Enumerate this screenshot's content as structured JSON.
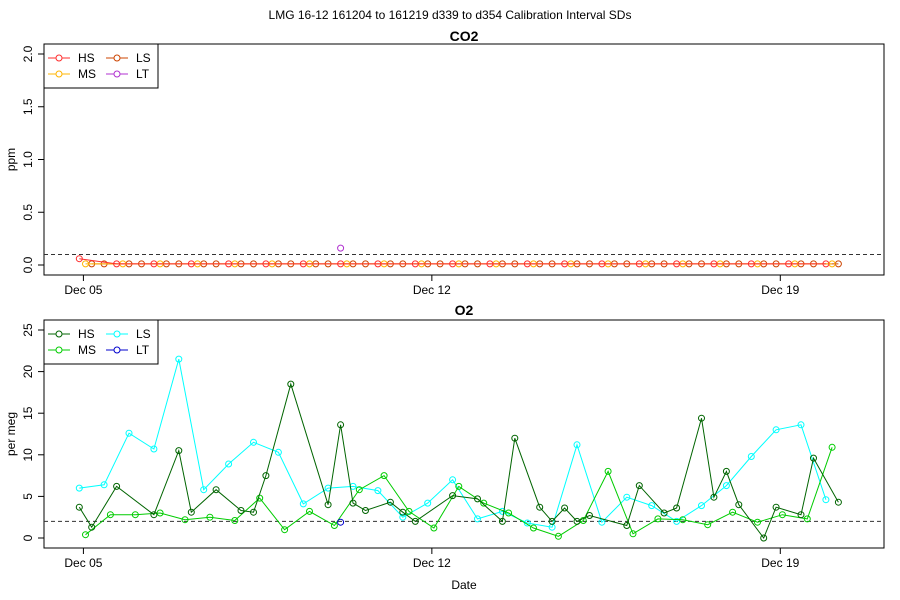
{
  "suptitle": "LMG   16-12    161204 to 161219    d339 to d354   Calibration Interval SDs",
  "x_label": "Date",
  "colors": {
    "HS": "#006400",
    "MS": "#00cc00",
    "LS": "#00ffff",
    "LT": "#0000cd",
    "co2_HS": "#ff2d2d",
    "co2_MS": "#ffb400",
    "co2_LS": "#cc4400",
    "co2_LT": "#b030d0",
    "ref_line": "#333333"
  },
  "chart_data": [
    {
      "type": "line",
      "title": "CO2",
      "ylabel": "ppm",
      "xlim": [
        "2016-12-04T05:00",
        "2016-12-21T02:00"
      ],
      "ylim": [
        0,
        2
      ],
      "yticks": [
        "0.0",
        "0.5",
        "1.0",
        "1.5",
        "2.0"
      ],
      "xticks": [
        {
          "date": "2016-12-05",
          "label": "Dec 05"
        },
        {
          "date": "2016-12-12",
          "label": "Dec 12"
        },
        {
          "date": "2016-12-19",
          "label": "Dec 19"
        }
      ],
      "reference_line": 0.1,
      "legend": [
        "HS",
        "MS",
        "LS",
        "LT"
      ],
      "legend_placement": "top-left",
      "series": [
        {
          "name": "HS",
          "color_key": "co2_HS",
          "x": [
            "2016-12-04T22:00",
            "2016-12-05T16:00",
            "2016-12-06T10:00",
            "2016-12-07T04:00",
            "2016-12-07T22:00",
            "2016-12-08T16:00",
            "2016-12-09T10:00",
            "2016-12-10T04:00",
            "2016-12-10T22:00",
            "2016-12-11T16:00",
            "2016-12-12T10:00",
            "2016-12-13T04:00",
            "2016-12-13T22:00",
            "2016-12-14T16:00",
            "2016-12-15T10:00",
            "2016-12-16T04:00",
            "2016-12-16T22:00",
            "2016-12-17T16:00",
            "2016-12-18T10:00",
            "2016-12-19T04:00",
            "2016-12-19T22:00"
          ],
          "y": [
            0.06,
            0.01,
            0.01,
            0.01,
            0.01,
            0.01,
            0.01,
            0.01,
            0.01,
            0.01,
            0.01,
            0.01,
            0.01,
            0.01,
            0.01,
            0.01,
            0.01,
            0.01,
            0.01,
            0.01,
            0.01
          ]
        },
        {
          "name": "MS",
          "color_key": "co2_MS",
          "x": [
            "2016-12-05T01:00",
            "2016-12-05T19:00",
            "2016-12-06T13:00",
            "2016-12-07T07:00",
            "2016-12-08T01:00",
            "2016-12-08T19:00",
            "2016-12-09T13:00",
            "2016-12-10T07:00",
            "2016-12-11T01:00",
            "2016-12-11T19:00",
            "2016-12-12T13:00",
            "2016-12-13T07:00",
            "2016-12-14T01:00",
            "2016-12-14T19:00",
            "2016-12-15T13:00",
            "2016-12-16T07:00",
            "2016-12-17T01:00",
            "2016-12-17T19:00",
            "2016-12-18T13:00",
            "2016-12-19T07:00",
            "2016-12-20T01:00"
          ],
          "y": [
            0.01,
            0.01,
            0.01,
            0.01,
            0.01,
            0.01,
            0.01,
            0.01,
            0.01,
            0.01,
            0.01,
            0.01,
            0.01,
            0.01,
            0.01,
            0.01,
            0.01,
            0.01,
            0.01,
            0.01,
            0.01
          ]
        },
        {
          "name": "LS",
          "color_key": "co2_LS",
          "x": [
            "2016-12-05T04:00",
            "2016-12-05T10:00",
            "2016-12-05T22:00",
            "2016-12-06T04:00",
            "2016-12-06T16:00",
            "2016-12-06T22:00",
            "2016-12-07T10:00",
            "2016-12-07T16:00",
            "2016-12-08T04:00",
            "2016-12-08T10:00",
            "2016-12-08T22:00",
            "2016-12-09T04:00",
            "2016-12-09T16:00",
            "2016-12-09T22:00",
            "2016-12-10T10:00",
            "2016-12-10T16:00",
            "2016-12-11T04:00",
            "2016-12-11T10:00",
            "2016-12-11T22:00",
            "2016-12-12T04:00",
            "2016-12-12T16:00",
            "2016-12-12T22:00",
            "2016-12-13T10:00",
            "2016-12-13T16:00",
            "2016-12-14T04:00",
            "2016-12-14T10:00",
            "2016-12-14T22:00",
            "2016-12-15T04:00",
            "2016-12-15T16:00",
            "2016-12-15T22:00",
            "2016-12-16T10:00",
            "2016-12-16T16:00",
            "2016-12-17T04:00",
            "2016-12-17T10:00",
            "2016-12-17T22:00",
            "2016-12-18T04:00",
            "2016-12-18T16:00",
            "2016-12-18T22:00",
            "2016-12-19T10:00",
            "2016-12-19T16:00",
            "2016-12-20T04:00"
          ],
          "y": [
            0.01,
            0.01,
            0.01,
            0.01,
            0.01,
            0.01,
            0.01,
            0.01,
            0.01,
            0.01,
            0.01,
            0.01,
            0.01,
            0.01,
            0.01,
            0.01,
            0.01,
            0.01,
            0.01,
            0.01,
            0.01,
            0.01,
            0.01,
            0.01,
            0.01,
            0.01,
            0.01,
            0.01,
            0.01,
            0.01,
            0.01,
            0.01,
            0.01,
            0.01,
            0.01,
            0.01,
            0.01,
            0.01,
            0.01,
            0.01,
            0.01
          ]
        },
        {
          "name": "LT",
          "color_key": "co2_LT",
          "x": [
            "2016-12-10T04:00"
          ],
          "y": [
            0.16
          ]
        }
      ]
    },
    {
      "type": "line",
      "title": "O2",
      "ylabel": "per meg",
      "xlim": [
        "2016-12-04T05:00",
        "2016-12-21T02:00"
      ],
      "ylim": [
        0,
        25
      ],
      "yticks": [
        "0",
        "5",
        "10",
        "15",
        "20",
        "25"
      ],
      "xticks": [
        {
          "date": "2016-12-05",
          "label": "Dec 05"
        },
        {
          "date": "2016-12-12",
          "label": "Dec 12"
        },
        {
          "date": "2016-12-19",
          "label": "Dec 19"
        }
      ],
      "reference_line": 2,
      "legend": [
        "HS",
        "MS",
        "LS",
        "LT"
      ],
      "legend_placement": "top-left",
      "series": [
        {
          "name": "HS",
          "color_key": "HS",
          "x": [
            "2016-12-04T22:00",
            "2016-12-05T04:00",
            "2016-12-05T16:00",
            "2016-12-06T10:00",
            "2016-12-06T22:00",
            "2016-12-07T04:00",
            "2016-12-07T16:00",
            "2016-12-08T04:00",
            "2016-12-08T10:00",
            "2016-12-08T16:00",
            "2016-12-09T04:00",
            "2016-12-09T22:00",
            "2016-12-10T04:00",
            "2016-12-10T10:00",
            "2016-12-10T16:00",
            "2016-12-11T04:00",
            "2016-12-11T10:00",
            "2016-12-11T16:00",
            "2016-12-12T10:00",
            "2016-12-12T22:00",
            "2016-12-13T10:00",
            "2016-12-13T16:00",
            "2016-12-14T04:00",
            "2016-12-14T10:00",
            "2016-12-14T16:00",
            "2016-12-14T22:00",
            "2016-12-15T04:00",
            "2016-12-15T22:00",
            "2016-12-16T04:00",
            "2016-12-16T16:00",
            "2016-12-16T22:00",
            "2016-12-17T10:00",
            "2016-12-17T16:00",
            "2016-12-17T22:00",
            "2016-12-18T04:00",
            "2016-12-18T16:00",
            "2016-12-18T22:00",
            "2016-12-19T10:00",
            "2016-12-19T16:00",
            "2016-12-20T04:00"
          ],
          "y": [
            3.7,
            1.3,
            6.2,
            2.8,
            10.5,
            3.1,
            5.8,
            3.3,
            3.1,
            7.5,
            18.5,
            4.0,
            13.6,
            4.2,
            3.3,
            4.3,
            3.1,
            2.0,
            5.1,
            4.7,
            2.0,
            12.0,
            3.7,
            2.0,
            3.6,
            2.0,
            2.7,
            1.5,
            6.3,
            3.0,
            3.6,
            14.4,
            4.9,
            8.0,
            4.0,
            0.0,
            3.7,
            2.8,
            9.6,
            4.3
          ]
        },
        {
          "name": "MS",
          "color_key": "MS",
          "x": [
            "2016-12-05T01:00",
            "2016-12-05T13:00",
            "2016-12-06T01:00",
            "2016-12-06T13:00",
            "2016-12-07T01:00",
            "2016-12-07T13:00",
            "2016-12-08T01:00",
            "2016-12-08T13:00",
            "2016-12-09T01:00",
            "2016-12-09T13:00",
            "2016-12-10T01:00",
            "2016-12-10T13:00",
            "2016-12-11T01:00",
            "2016-12-11T13:00",
            "2016-12-12T01:00",
            "2016-12-12T13:00",
            "2016-12-13T01:00",
            "2016-12-13T13:00",
            "2016-12-14T01:00",
            "2016-12-14T13:00",
            "2016-12-15T01:00",
            "2016-12-15T13:00",
            "2016-12-16T01:00",
            "2016-12-16T13:00",
            "2016-12-17T01:00",
            "2016-12-17T13:00",
            "2016-12-18T01:00",
            "2016-12-18T13:00",
            "2016-12-19T01:00",
            "2016-12-19T13:00",
            "2016-12-20T01:00"
          ],
          "y": [
            0.4,
            2.8,
            2.8,
            3.0,
            2.2,
            2.5,
            2.1,
            4.8,
            1.0,
            3.2,
            1.5,
            5.8,
            7.5,
            3.2,
            1.2,
            6.2,
            4.2,
            3.0,
            1.2,
            0.2,
            2.1,
            8.0,
            0.5,
            2.3,
            2.2,
            1.6,
            3.1,
            1.9,
            2.8,
            2.3,
            10.9
          ]
        },
        {
          "name": "LS",
          "color_key": "LS",
          "x": [
            "2016-12-04T22:00",
            "2016-12-05T10:00",
            "2016-12-05T22:00",
            "2016-12-06T10:00",
            "2016-12-06T22:00",
            "2016-12-07T10:00",
            "2016-12-07T22:00",
            "2016-12-08T10:00",
            "2016-12-08T22:00",
            "2016-12-09T10:00",
            "2016-12-09T22:00",
            "2016-12-10T10:00",
            "2016-12-10T22:00",
            "2016-12-11T10:00",
            "2016-12-11T22:00",
            "2016-12-12T10:00",
            "2016-12-12T22:00",
            "2016-12-13T10:00",
            "2016-12-13T22:00",
            "2016-12-14T10:00",
            "2016-12-14T22:00",
            "2016-12-15T10:00",
            "2016-12-15T22:00",
            "2016-12-16T10:00",
            "2016-12-16T22:00",
            "2016-12-17T10:00",
            "2016-12-17T22:00",
            "2016-12-18T10:00",
            "2016-12-18T22:00",
            "2016-12-19T10:00",
            "2016-12-19T22:00"
          ],
          "y": [
            6.0,
            6.4,
            12.6,
            10.7,
            21.5,
            5.8,
            8.9,
            11.5,
            10.3,
            4.1,
            6.0,
            6.2,
            5.7,
            2.5,
            4.2,
            7.0,
            2.3,
            3.2,
            1.8,
            1.3,
            11.2,
            1.9,
            4.9,
            3.9,
            2.0,
            3.9,
            6.3,
            9.8,
            13.0,
            13.6,
            4.6
          ]
        },
        {
          "name": "LT",
          "color_key": "LT",
          "x": [
            "2016-12-10T04:00"
          ],
          "y": [
            1.9
          ]
        }
      ]
    }
  ]
}
